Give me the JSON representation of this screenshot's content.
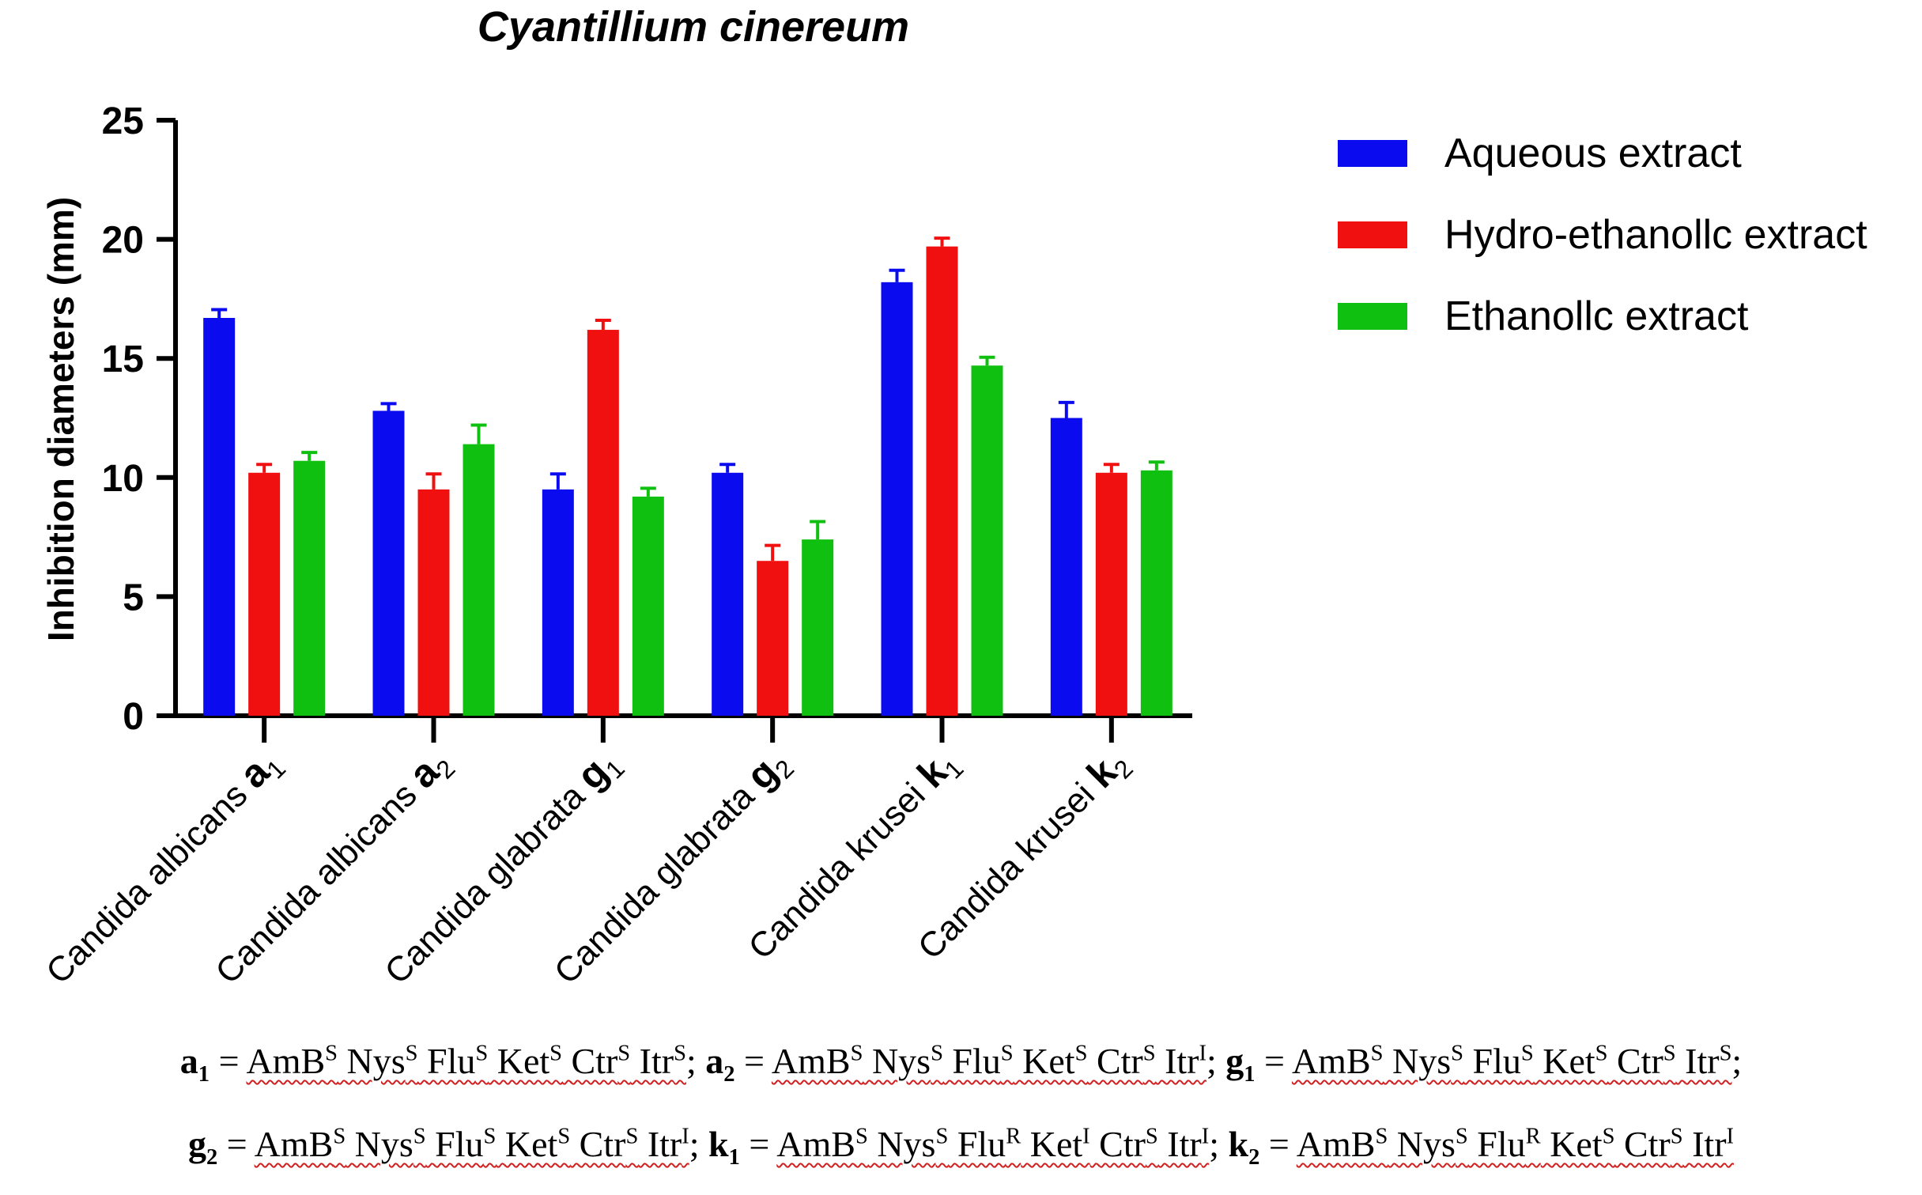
{
  "chart_data": {
    "type": "bar",
    "title": "Cyantillium cinereum",
    "ylabel": "Inhibition diameters (mm)",
    "xlabel": "",
    "ylim": [
      0,
      25
    ],
    "yticks": [
      0,
      5,
      10,
      15,
      20,
      25
    ],
    "grid": false,
    "legend_position": "top-right",
    "categories": [
      {
        "name": "Candida albicans",
        "strain": "a",
        "sub": "1"
      },
      {
        "name": "Candida albicans",
        "strain": "a",
        "sub": "2"
      },
      {
        "name": "Candida glabrata",
        "strain": "g",
        "sub": "1"
      },
      {
        "name": "Candida glabrata",
        "strain": "g",
        "sub": "2"
      },
      {
        "name": "Candida krusei",
        "strain": "k",
        "sub": "1"
      },
      {
        "name": "Candida krusei",
        "strain": "k",
        "sub": "2"
      }
    ],
    "series": [
      {
        "name": "Aqueous extract",
        "color": "#0b0bf0",
        "values": [
          16.7,
          12.8,
          9.5,
          10.2,
          18.2,
          12.5
        ],
        "errors": [
          0.35,
          0.3,
          0.65,
          0.35,
          0.5,
          0.65
        ]
      },
      {
        "name": "Hydro-ethanollc extract",
        "color": "#f01010",
        "values": [
          10.2,
          9.5,
          16.2,
          6.5,
          19.7,
          10.2
        ],
        "errors": [
          0.35,
          0.65,
          0.4,
          0.65,
          0.35,
          0.35
        ]
      },
      {
        "name": "Ethanollc extract",
        "color": "#10c010",
        "values": [
          10.7,
          11.4,
          9.2,
          7.4,
          14.7,
          10.3
        ],
        "errors": [
          0.35,
          0.8,
          0.35,
          0.75,
          0.35,
          0.35
        ]
      }
    ]
  },
  "footnotes": [
    [
      {
        "key": "a",
        "keysub": "1",
        "codes": [
          [
            "AmB",
            "S"
          ],
          [
            "Nys",
            "S"
          ],
          [
            "Flu",
            "S"
          ],
          [
            "Ket",
            "S"
          ],
          [
            "Ctr",
            "S"
          ],
          [
            "Itr",
            "S"
          ]
        ]
      },
      {
        "key": "a",
        "keysub": "2",
        "codes": [
          [
            "AmB",
            "S"
          ],
          [
            "Nys",
            "S"
          ],
          [
            "Flu",
            "S"
          ],
          [
            "Ket",
            "S"
          ],
          [
            "Ctr",
            "S"
          ],
          [
            "Itr",
            "I"
          ]
        ]
      },
      {
        "key": "g",
        "keysub": "1",
        "codes": [
          [
            "AmB",
            "S"
          ],
          [
            "Nys",
            "S"
          ],
          [
            "Flu",
            "S"
          ],
          [
            "Ket",
            "S"
          ],
          [
            "Ctr",
            "S"
          ],
          [
            "Itr",
            "S"
          ]
        ]
      }
    ],
    [
      {
        "key": "g",
        "keysub": "2",
        "codes": [
          [
            "AmB",
            "S"
          ],
          [
            "Nys",
            "S"
          ],
          [
            "Flu",
            "S"
          ],
          [
            "Ket",
            "S"
          ],
          [
            "Ctr",
            "S"
          ],
          [
            "Itr",
            "I"
          ]
        ]
      },
      {
        "key": "k",
        "keysub": "1",
        "codes": [
          [
            "AmB",
            "S"
          ],
          [
            "Nys",
            "S"
          ],
          [
            "Flu",
            "R"
          ],
          [
            "Ket",
            "I"
          ],
          [
            "Ctr",
            "S"
          ],
          [
            "Itr",
            "I"
          ]
        ]
      },
      {
        "key": "k",
        "keysub": "2",
        "codes": [
          [
            "AmB",
            "S"
          ],
          [
            "Nys",
            "S"
          ],
          [
            "Flu",
            "R"
          ],
          [
            "Ket",
            "S"
          ],
          [
            "Ctr",
            "S"
          ],
          [
            "Itr",
            "I"
          ]
        ]
      }
    ]
  ]
}
